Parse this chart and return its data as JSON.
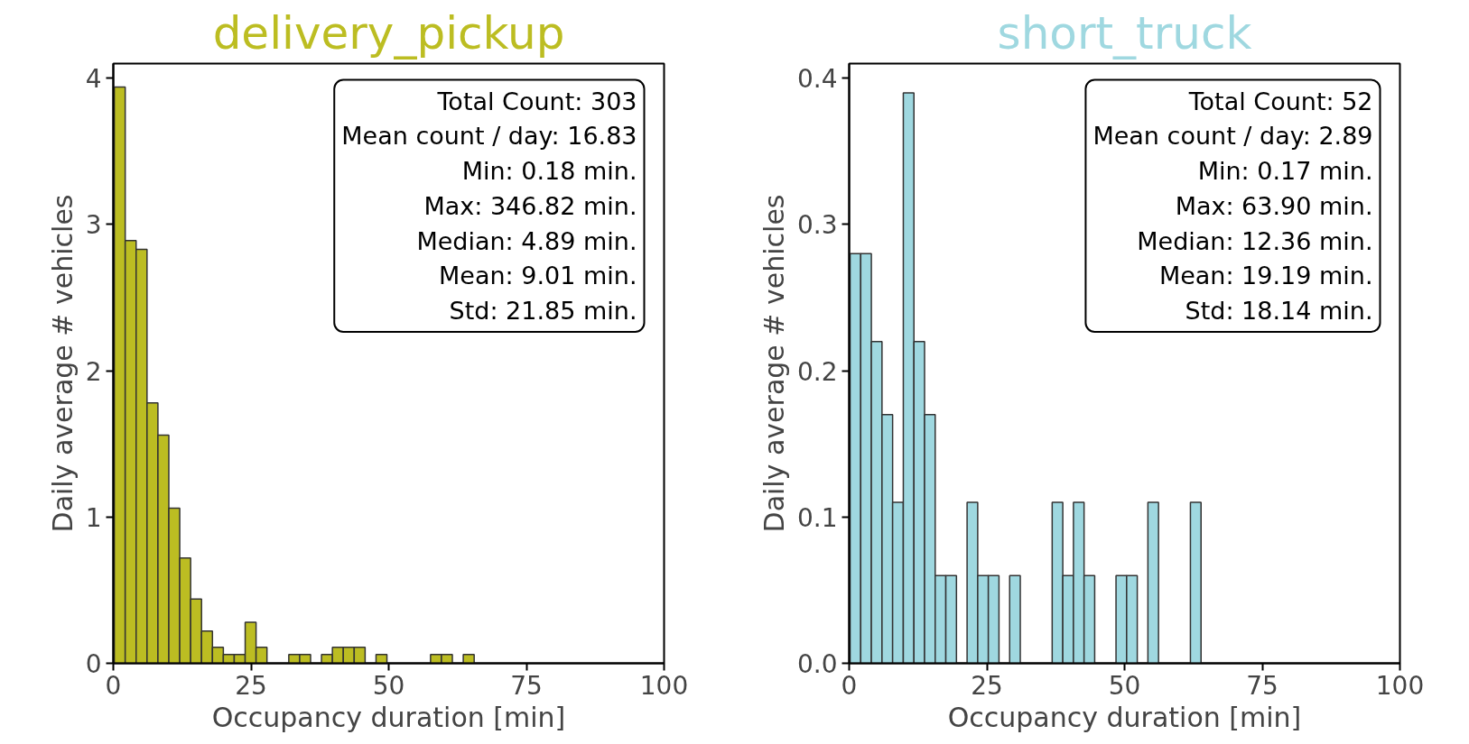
{
  "chart_data": [
    {
      "type": "histogram",
      "title": "delivery_pickup",
      "xlabel": "Occupancy duration [min]",
      "ylabel": "Daily average # vehicles",
      "color": "#bcbd22",
      "bins": [
        0.18,
        2.16,
        4.14,
        6.12,
        8.1,
        10.08,
        12.06,
        14.04,
        16.02,
        18.0,
        19.98,
        21.96,
        23.94,
        25.92,
        27.9,
        29.88,
        31.86,
        33.84,
        35.82,
        37.8,
        39.78,
        41.76,
        43.74,
        45.72,
        47.7,
        49.68,
        51.66,
        53.64,
        55.62,
        57.6,
        59.58,
        61.56,
        63.54,
        65.52
      ],
      "values": [
        3.94,
        2.89,
        2.83,
        1.78,
        1.56,
        1.06,
        0.72,
        0.44,
        0.22,
        0.11,
        0.06,
        0.06,
        0.28,
        0.11,
        0,
        0,
        0.06,
        0.06,
        0,
        0.06,
        0.11,
        0.11,
        0.11,
        0,
        0.06,
        0,
        0,
        0,
        0,
        0.06,
        0.06,
        0,
        0.06
      ],
      "xlim": [
        0,
        100
      ],
      "xticks": [
        0,
        25,
        50,
        75,
        100
      ],
      "ylim": [
        0,
        4.1
      ],
      "yticks": [
        0,
        1,
        2,
        3,
        4
      ],
      "grid": false,
      "annotations": [
        "Total Count: 303",
        "Mean count / day: 16.83",
        "Min: 0.18 min.",
        "Max: 346.82 min.",
        "Median: 4.89 min.",
        "Mean: 9.01 min.",
        "Std: 21.85 min."
      ]
    },
    {
      "type": "histogram",
      "title": "short_truck",
      "xlabel": "Occupancy duration [min]",
      "ylabel": "Daily average # vehicles",
      "color": "#9fd8e0",
      "bins": [
        0.17,
        2.1,
        4.03,
        5.96,
        7.89,
        9.83,
        11.76,
        13.69,
        15.62,
        17.55,
        19.48,
        21.41,
        23.34,
        25.27,
        27.2,
        29.14,
        31.07,
        33.0,
        34.93,
        36.86,
        38.79,
        40.72,
        42.65,
        44.58,
        46.51,
        48.45,
        50.38,
        52.31,
        54.24,
        56.17,
        58.1,
        60.03,
        61.96,
        63.89
      ],
      "values": [
        0.28,
        0.28,
        0.22,
        0.17,
        0.11,
        0.39,
        0.22,
        0.17,
        0.06,
        0.06,
        0,
        0.11,
        0.06,
        0.06,
        0,
        0.06,
        0,
        0,
        0,
        0.11,
        0.06,
        0.11,
        0.06,
        0,
        0,
        0.06,
        0.06,
        0,
        0.11,
        0,
        0,
        0,
        0.11
      ],
      "xlim": [
        0,
        100
      ],
      "xticks": [
        0,
        25,
        50,
        75,
        100
      ],
      "ylim": [
        0,
        0.41
      ],
      "yticks": [
        {
          "value": 0,
          "label": "0.0"
        },
        0.1,
        0.2,
        0.3,
        0.4
      ],
      "grid": false,
      "annotations": [
        "Total Count: 52",
        "Mean count / day: 2.89",
        "Min: 0.17 min.",
        "Max: 63.90 min.",
        "Median: 12.36 min.",
        "Mean: 19.19 min.",
        "Std: 18.14 min."
      ]
    }
  ]
}
